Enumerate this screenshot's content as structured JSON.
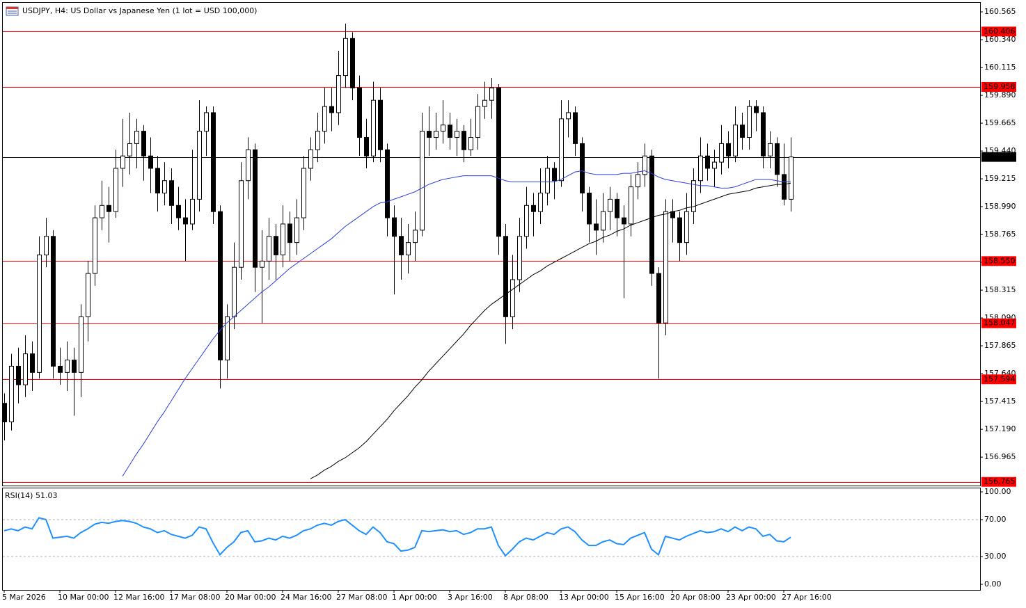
{
  "chart_data": {
    "type": "candlestick",
    "title": "USDJPY, H4:  US Dollar vs Japanese Yen (1 lot = USD 100,000)",
    "up_color": "#ffffff",
    "down_color": "#000000",
    "categories": [
      "5 Mar 2026",
      null,
      null,
      null,
      null,
      null,
      null,
      null,
      "10 Mar 00:00",
      null,
      null,
      null,
      null,
      null,
      null,
      null,
      "12 Mar 16:00",
      null,
      null,
      null,
      null,
      null,
      null,
      null,
      "17 Mar 08:00",
      null,
      null,
      null,
      null,
      null,
      null,
      null,
      "20 Mar 00:00",
      null,
      null,
      null,
      null,
      null,
      null,
      null,
      "24 Mar 16:00",
      null,
      null,
      null,
      null,
      null,
      null,
      null,
      "27 Mar 08:00",
      null,
      null,
      null,
      null,
      null,
      null,
      null,
      "1 Apr 00:00",
      null,
      null,
      null,
      null,
      null,
      null,
      null,
      "3 Apr 16:00",
      null,
      null,
      null,
      null,
      null,
      null,
      null,
      "8 Apr 08:00",
      null,
      null,
      null,
      null,
      null,
      null,
      null,
      "13 Apr 00:00",
      null,
      null,
      null,
      null,
      null,
      null,
      null,
      "15 Apr 16:00",
      null,
      null,
      null,
      null,
      null,
      null,
      null,
      "20 Apr 08:00",
      null,
      null,
      null,
      null,
      null,
      null,
      null,
      "23 Apr 00:00",
      null,
      null,
      null,
      null,
      null,
      null,
      null,
      "27 Apr 16:00",
      null
    ],
    "candles": [
      [
        157.4,
        157.48,
        157.1,
        157.25
      ],
      [
        157.25,
        157.8,
        157.18,
        157.7
      ],
      [
        157.7,
        157.85,
        157.4,
        157.55
      ],
      [
        157.55,
        157.95,
        157.45,
        157.8
      ],
      [
        157.8,
        157.9,
        157.5,
        157.65
      ],
      [
        157.65,
        158.75,
        157.6,
        158.6
      ],
      [
        158.6,
        158.9,
        158.5,
        158.75
      ],
      [
        158.75,
        158.8,
        157.6,
        157.7
      ],
      [
        157.7,
        157.85,
        157.55,
        157.65
      ],
      [
        157.65,
        157.9,
        157.5,
        157.75
      ],
      [
        157.75,
        157.85,
        157.3,
        157.65
      ],
      [
        157.65,
        158.2,
        157.45,
        158.1
      ],
      [
        158.1,
        158.55,
        157.9,
        158.45
      ],
      [
        158.45,
        159.0,
        158.35,
        158.9
      ],
      [
        158.9,
        159.2,
        158.8,
        159.0
      ],
      [
        159.0,
        159.15,
        158.7,
        158.95
      ],
      [
        158.95,
        159.45,
        158.9,
        159.3
      ],
      [
        159.3,
        159.7,
        159.15,
        159.4
      ],
      [
        159.4,
        159.75,
        159.25,
        159.5
      ],
      [
        159.5,
        159.7,
        159.3,
        159.6
      ],
      [
        159.6,
        159.65,
        159.2,
        159.4
      ],
      [
        159.4,
        159.55,
        159.1,
        159.3
      ],
      [
        159.3,
        159.4,
        158.95,
        159.1
      ],
      [
        159.1,
        159.35,
        159.0,
        159.2
      ],
      [
        159.2,
        159.3,
        158.85,
        159.0
      ],
      [
        159.0,
        159.15,
        158.8,
        158.9
      ],
      [
        158.9,
        159.05,
        158.55,
        158.85
      ],
      [
        158.85,
        159.45,
        158.8,
        159.05
      ],
      [
        159.05,
        159.85,
        158.95,
        159.6
      ],
      [
        159.6,
        159.8,
        159.4,
        159.75
      ],
      [
        159.75,
        159.8,
        158.85,
        158.95
      ],
      [
        158.95,
        159.0,
        157.52,
        157.75
      ],
      [
        157.75,
        158.2,
        157.6,
        158.1
      ],
      [
        158.1,
        158.7,
        158.0,
        158.5
      ],
      [
        158.5,
        159.35,
        158.4,
        159.2
      ],
      [
        159.2,
        159.55,
        159.05,
        159.45
      ],
      [
        159.45,
        159.5,
        158.3,
        158.5
      ],
      [
        158.5,
        158.8,
        158.05,
        158.55
      ],
      [
        158.55,
        158.9,
        158.4,
        158.75
      ],
      [
        158.75,
        158.85,
        158.4,
        158.6
      ],
      [
        158.6,
        159.0,
        158.5,
        158.85
      ],
      [
        158.85,
        158.95,
        158.55,
        158.7
      ],
      [
        158.7,
        159.05,
        158.6,
        158.9
      ],
      [
        158.9,
        159.4,
        158.8,
        159.3
      ],
      [
        159.3,
        159.55,
        159.2,
        159.45
      ],
      [
        159.45,
        159.75,
        159.35,
        159.6
      ],
      [
        159.6,
        159.95,
        159.5,
        159.8
      ],
      [
        159.8,
        159.95,
        159.6,
        159.75
      ],
      [
        159.75,
        160.25,
        159.65,
        160.05
      ],
      [
        160.05,
        160.47,
        159.95,
        160.35
      ],
      [
        160.35,
        160.4,
        159.85,
        159.95
      ],
      [
        159.95,
        160.05,
        159.4,
        159.55
      ],
      [
        159.55,
        159.7,
        159.3,
        159.4
      ],
      [
        159.4,
        160.0,
        159.35,
        159.85
      ],
      [
        159.85,
        159.95,
        159.35,
        159.45
      ],
      [
        159.45,
        159.5,
        158.75,
        158.9
      ],
      [
        158.9,
        159.0,
        158.28,
        158.75
      ],
      [
        158.75,
        158.9,
        158.4,
        158.6
      ],
      [
        158.6,
        158.85,
        158.45,
        158.7
      ],
      [
        158.7,
        158.95,
        158.55,
        158.8
      ],
      [
        158.8,
        159.75,
        158.75,
        159.6
      ],
      [
        159.6,
        159.8,
        159.4,
        159.55
      ],
      [
        159.55,
        159.75,
        159.45,
        159.6
      ],
      [
        159.6,
        159.85,
        159.5,
        159.65
      ],
      [
        159.65,
        159.75,
        159.45,
        159.55
      ],
      [
        159.55,
        159.7,
        159.4,
        159.6
      ],
      [
        159.6,
        159.65,
        159.35,
        159.45
      ],
      [
        159.45,
        159.7,
        159.4,
        159.55
      ],
      [
        159.55,
        159.9,
        159.45,
        159.8
      ],
      [
        159.8,
        160.0,
        159.7,
        159.85
      ],
      [
        159.85,
        160.03,
        159.7,
        159.95
      ],
      [
        159.95,
        159.98,
        158.6,
        158.75
      ],
      [
        158.75,
        158.85,
        157.88,
        158.1
      ],
      [
        158.1,
        158.6,
        158.0,
        158.4
      ],
      [
        158.4,
        158.9,
        158.3,
        158.75
      ],
      [
        158.75,
        159.15,
        158.65,
        159.0
      ],
      [
        159.0,
        159.1,
        158.75,
        158.95
      ],
      [
        158.95,
        159.3,
        158.85,
        159.1
      ],
      [
        159.1,
        159.4,
        159.0,
        159.3
      ],
      [
        159.3,
        159.35,
        159.05,
        159.2
      ],
      [
        159.2,
        159.85,
        159.15,
        159.7
      ],
      [
        159.7,
        159.85,
        159.55,
        159.75
      ],
      [
        159.75,
        159.8,
        159.4,
        159.5
      ],
      [
        159.5,
        159.55,
        158.95,
        159.1
      ],
      [
        159.1,
        159.15,
        158.7,
        158.85
      ],
      [
        158.85,
        159.05,
        158.6,
        158.8
      ],
      [
        158.8,
        159.1,
        158.7,
        158.95
      ],
      [
        158.95,
        159.15,
        158.8,
        159.05
      ],
      [
        159.05,
        159.1,
        158.75,
        158.9
      ],
      [
        158.9,
        159.0,
        158.25,
        158.85
      ],
      [
        158.85,
        159.25,
        158.75,
        159.15
      ],
      [
        159.15,
        159.35,
        159.05,
        159.25
      ],
      [
        159.25,
        159.5,
        159.15,
        159.4
      ],
      [
        159.4,
        159.45,
        158.35,
        158.45
      ],
      [
        158.45,
        158.5,
        157.6,
        158.05
      ],
      [
        158.05,
        159.05,
        157.95,
        158.95
      ],
      [
        158.95,
        159.05,
        158.7,
        158.9
      ],
      [
        158.9,
        158.95,
        158.55,
        158.7
      ],
      [
        158.7,
        159.1,
        158.6,
        158.95
      ],
      [
        158.95,
        159.3,
        158.85,
        159.2
      ],
      [
        159.2,
        159.55,
        159.1,
        159.4
      ],
      [
        159.4,
        159.5,
        159.2,
        159.3
      ],
      [
        159.3,
        159.45,
        159.15,
        159.35
      ],
      [
        159.35,
        159.65,
        159.25,
        159.5
      ],
      [
        159.5,
        159.6,
        159.3,
        159.4
      ],
      [
        159.4,
        159.8,
        159.35,
        159.65
      ],
      [
        159.65,
        159.75,
        159.45,
        159.55
      ],
      [
        159.55,
        159.85,
        159.45,
        159.8
      ],
      [
        159.8,
        159.85,
        159.6,
        159.75
      ],
      [
        159.75,
        159.8,
        159.3,
        159.4
      ],
      [
        159.4,
        159.6,
        159.3,
        159.5
      ],
      [
        159.5,
        159.55,
        159.15,
        159.25
      ],
      [
        159.25,
        159.5,
        159.0,
        159.05
      ],
      [
        159.05,
        159.55,
        158.95,
        159.392
      ]
    ],
    "lines": [
      {
        "color": "#2b3ee0",
        "values": [
          null,
          null,
          null,
          null,
          null,
          null,
          null,
          null,
          null,
          null,
          null,
          null,
          null,
          null,
          null,
          null,
          null,
          156.81,
          156.9,
          156.99,
          157.07,
          157.16,
          157.25,
          157.33,
          157.42,
          157.51,
          157.6,
          157.68,
          157.76,
          157.84,
          157.92,
          157.99,
          158.05,
          158.1,
          158.15,
          158.2,
          158.25,
          158.3,
          158.34,
          158.39,
          158.44,
          158.49,
          158.53,
          158.57,
          158.61,
          158.65,
          158.69,
          158.73,
          158.78,
          158.83,
          158.87,
          158.91,
          158.95,
          158.99,
          159.02,
          159.03,
          159.05,
          159.07,
          159.09,
          159.11,
          159.14,
          159.17,
          159.19,
          159.21,
          159.22,
          159.23,
          159.24,
          159.24,
          159.24,
          159.24,
          159.24,
          159.22,
          159.2,
          159.19,
          159.19,
          159.19,
          159.19,
          159.19,
          159.19,
          159.19,
          159.21,
          159.24,
          159.27,
          159.28,
          159.26,
          159.25,
          159.25,
          159.25,
          159.25,
          159.26,
          159.26,
          159.27,
          159.28,
          159.26,
          159.23,
          159.21,
          159.2,
          159.19,
          159.18,
          159.17,
          159.16,
          159.16,
          159.15,
          159.14,
          159.14,
          159.15,
          159.17,
          159.19,
          159.21,
          159.21,
          159.21,
          159.2,
          159.19,
          159.19
        ]
      },
      {
        "color": "#000000",
        "values": [
          null,
          null,
          null,
          null,
          null,
          null,
          null,
          null,
          null,
          null,
          null,
          null,
          null,
          null,
          null,
          null,
          null,
          null,
          null,
          null,
          null,
          null,
          null,
          null,
          null,
          null,
          null,
          null,
          null,
          null,
          null,
          null,
          null,
          null,
          null,
          null,
          null,
          null,
          null,
          null,
          null,
          null,
          null,
          null,
          156.79,
          156.82,
          156.86,
          156.89,
          156.93,
          156.96,
          157.0,
          157.04,
          157.09,
          157.15,
          157.21,
          157.27,
          157.34,
          157.4,
          157.46,
          157.53,
          157.59,
          157.66,
          157.72,
          157.78,
          157.84,
          157.9,
          157.96,
          158.03,
          158.09,
          158.15,
          158.2,
          158.24,
          158.28,
          158.32,
          158.36,
          158.4,
          158.44,
          158.47,
          158.51,
          158.54,
          158.57,
          158.6,
          158.63,
          158.66,
          158.69,
          158.71,
          158.74,
          158.76,
          158.79,
          158.81,
          158.84,
          158.86,
          158.88,
          158.9,
          158.92,
          158.93,
          158.95,
          158.96,
          158.98,
          158.99,
          159.01,
          159.03,
          159.05,
          159.07,
          159.09,
          159.1,
          159.11,
          159.12,
          159.14,
          159.15,
          159.16,
          159.17,
          159.17,
          159.18
        ]
      }
    ],
    "levels": [
      {
        "value": 160.406,
        "color": "#ff0000"
      },
      {
        "value": 159.958,
        "color": "#ff0000"
      },
      {
        "value": 159.392,
        "color": "#000000"
      },
      {
        "value": 158.55,
        "label": "158.550",
        "color": "#ff0000"
      },
      {
        "value": 158.047,
        "color": "#ff0000"
      },
      {
        "value": 157.594,
        "color": "#ff0000"
      },
      {
        "value": 156.765,
        "color": "#ff0000"
      }
    ],
    "ylim": [
      156.735,
      160.644
    ],
    "yticks": [
      160.565,
      {
        "value": 160.34,
        "label": "160.340"
      },
      160.115,
      {
        "value": 159.89,
        "label": "159.890"
      },
      159.665,
      {
        "value": 159.44,
        "label": "159.440"
      },
      159.215,
      {
        "value": 158.99,
        "label": "158.990"
      },
      158.765,
      {
        "value": 158.54,
        "label": "158.540"
      },
      158.315,
      {
        "value": 158.09,
        "label": "158.090"
      },
      157.865,
      {
        "value": 157.64,
        "label": "157.640"
      },
      157.415,
      {
        "value": 157.19,
        "label": "157.190"
      },
      156.965
    ],
    "rsi": {
      "label": "RSI(14) 51.03",
      "color": "#1e90ff",
      "ylim": [
        -6,
        103.8
      ],
      "yticks": [
        {
          "value": 100,
          "label": "100.00"
        },
        {
          "value": 70,
          "label": "70.00"
        },
        {
          "value": 30,
          "label": "30.00"
        },
        {
          "value": 0,
          "label": "0.00"
        }
      ],
      "levels": [
        70,
        30
      ],
      "values": [
        58,
        60,
        58,
        62,
        60,
        72,
        70,
        50,
        51,
        52,
        50,
        56,
        60,
        65,
        67,
        66,
        68,
        69,
        68,
        66,
        62,
        60,
        56,
        58,
        54,
        52,
        50,
        53,
        62,
        60,
        45,
        32,
        40,
        46,
        56,
        58,
        46,
        47,
        50,
        48,
        52,
        50,
        53,
        58,
        60,
        64,
        66,
        64,
        68,
        70,
        64,
        58,
        54,
        62,
        56,
        46,
        44,
        36,
        37,
        40,
        58,
        57,
        58,
        59,
        57,
        58,
        54,
        56,
        60,
        60,
        62,
        42,
        31,
        38,
        46,
        50,
        48,
        52,
        56,
        54,
        60,
        62,
        57,
        48,
        42,
        42,
        46,
        48,
        44,
        43,
        50,
        53,
        56,
        38,
        32,
        52,
        50,
        48,
        52,
        55,
        58,
        56,
        57,
        60,
        57,
        62,
        58,
        62,
        60,
        52,
        54,
        47,
        46,
        51.03
      ]
    }
  }
}
